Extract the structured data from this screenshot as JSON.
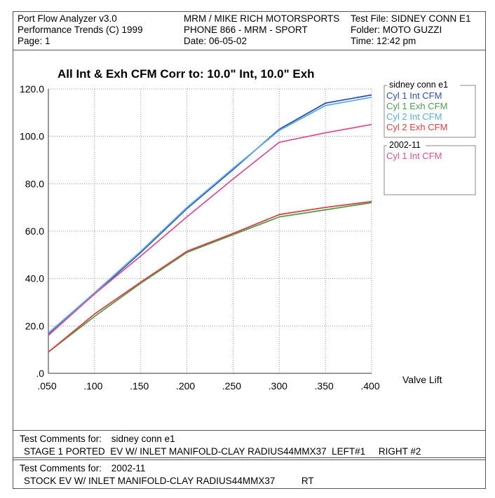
{
  "header": {
    "col1": [
      "Port Flow Analyzer v3.0",
      "Performance Trends (C) 1999",
      "Page:  1"
    ],
    "col2": [
      "MRM / MIKE RICH MOTORSPORTS",
      "PHONE 866 - MRM - SPORT",
      "Date: 06-05-02"
    ],
    "col3": [
      "Test File: SIDNEY CONN E1",
      "Folder: MOTO GUZZI",
      "Time: 12:42 pm"
    ]
  },
  "comments": [
    {
      "label": "Test Comments for:",
      "name": "sidney conn e1",
      "text": "STAGE 1 PORTED  EV W/ INLET MANIFOLD-CLAY RADIUS44MMX37  LEFT#1     RIGHT #2"
    },
    {
      "label": "Test Comments for:",
      "name": "2002-11",
      "text": "STOCK EV W/ INLET MANIFOLD-CLAY RADIUS44MMX37          RT"
    }
  ],
  "chart_data": {
    "type": "line",
    "title": "All Int & Exh CFM   Corr to: 10.0\" Int, 10.0\" Exh",
    "xlabel": "Valve Lift",
    "ylabel": "",
    "x": [
      0.05,
      0.1,
      0.15,
      0.2,
      0.25,
      0.3,
      0.35,
      0.4
    ],
    "xlim": [
      0.05,
      0.4
    ],
    "ylim": [
      0,
      120
    ],
    "x_tick_labels": [
      ".050",
      ".100",
      ".150",
      ".200",
      ".250",
      ".300",
      ".350",
      ".400"
    ],
    "y_tick_values": [
      0,
      20,
      40,
      60,
      80,
      100,
      120
    ],
    "y_tick_labels": [
      ".0",
      "20.0",
      "40.0",
      "60.0",
      "80.0",
      "100.0",
      "120.0"
    ],
    "grid": true,
    "legend_position": "right",
    "legend_groups": [
      {
        "title": "sidney conn e1",
        "series": [
          0,
          1,
          2,
          3
        ]
      },
      {
        "title": "2002-11",
        "series": [
          4
        ]
      }
    ],
    "series": [
      {
        "name": "Cyl 1 Int CFM",
        "color": "#3050b0",
        "values": [
          16.5,
          33.5,
          51,
          69.5,
          86,
          103,
          114,
          117.5
        ]
      },
      {
        "name": "Cyl 1 Exh CFM",
        "color": "#4fa04f",
        "values": [
          9,
          24,
          38,
          51,
          58.5,
          66,
          69,
          72
        ]
      },
      {
        "name": "Cyl 2 Int CFM",
        "color": "#5aaee8",
        "values": [
          17,
          34,
          51.5,
          70,
          86.5,
          102.5,
          113,
          116.5
        ]
      },
      {
        "name": "Cyl 2 Exh CFM",
        "color": "#dd4040",
        "values": [
          9,
          25,
          38.5,
          51.5,
          59,
          67,
          70,
          72.5
        ]
      },
      {
        "name": "Cyl 1 Int CFM",
        "color": "#e0508f",
        "values": [
          16,
          33.5,
          49.5,
          66,
          82,
          97.5,
          101.5,
          105
        ]
      }
    ]
  }
}
